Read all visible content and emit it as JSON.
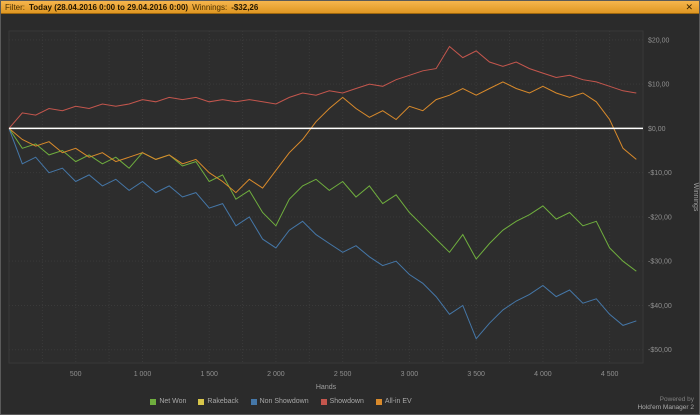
{
  "titlebar": {
    "filter_label": "Filter:",
    "filter_value": "Today (28.04.2016 0:00 to 29.04.2016 0:00)",
    "winnings_label": "Winnings:",
    "winnings_value": "-$32,26",
    "close_glyph": "✕"
  },
  "footer": {
    "powered_by": "Powered by",
    "brand": "Hold'em Manager 2"
  },
  "colors": {
    "background": "#2b2b2b",
    "plot_background": "#2d2d2d",
    "gridline": "#3a3a3a",
    "zero_line": "#ffffff",
    "titlebar_orange": "#e9a432",
    "axis_text": "#8f8f8f"
  },
  "chart_data": {
    "type": "line",
    "title": "",
    "xlabel": "Hands",
    "ylabel": "Winnings",
    "xlim": [
      0,
      4750
    ],
    "ylim": [
      -53,
      22
    ],
    "grid": "dotted",
    "legend_position": "bottom",
    "zero_line_color": "#ffffff",
    "x_step": 100,
    "x_ticks": [
      {
        "v": 500,
        "label": "500"
      },
      {
        "v": 1000,
        "label": "1 000"
      },
      {
        "v": 1500,
        "label": "1 500"
      },
      {
        "v": 2000,
        "label": "2 000"
      },
      {
        "v": 2500,
        "label": "2 500"
      },
      {
        "v": 3000,
        "label": "3 000"
      },
      {
        "v": 3500,
        "label": "3 500"
      },
      {
        "v": 4000,
        "label": "4 000"
      },
      {
        "v": 4500,
        "label": "4 500"
      }
    ],
    "y_ticks": [
      {
        "v": 20,
        "label": "$20,00"
      },
      {
        "v": 10,
        "label": "$10,00"
      },
      {
        "v": 0,
        "label": "$0,00"
      },
      {
        "v": -10,
        "label": "-$10,00"
      },
      {
        "v": -20,
        "label": "-$20,00"
      },
      {
        "v": -30,
        "label": "-$30,00"
      },
      {
        "v": -40,
        "label": "-$40,00"
      },
      {
        "v": -50,
        "label": "-$50,00"
      }
    ],
    "series": [
      {
        "name": "Net Won",
        "color": "#6fae3e",
        "values": [
          0,
          -4.5,
          -3.5,
          -6,
          -5,
          -7.5,
          -6,
          -8,
          -6.5,
          -9,
          -5.5,
          -7,
          -6,
          -8.5,
          -7.5,
          -12,
          -10.5,
          -16,
          -14,
          -19,
          -22,
          -16,
          -13,
          -11.5,
          -14,
          -12,
          -15.5,
          -13,
          -17,
          -15,
          -19,
          -22,
          -25,
          -28,
          -24,
          -29.5,
          -26,
          -23,
          -21,
          -19.5,
          -17.5,
          -20.5,
          -19,
          -22,
          -21,
          -27,
          -30,
          -32.26
        ]
      },
      {
        "name": "Rakeback",
        "color": "#d8c64a",
        "values": [
          0,
          0,
          0,
          0,
          0,
          0,
          0,
          0,
          0,
          0,
          0,
          0,
          0,
          0,
          0,
          0,
          0,
          0,
          0,
          0,
          0,
          0,
          0,
          0,
          0,
          0,
          0,
          0,
          0,
          0,
          0,
          0,
          0,
          0,
          0,
          0,
          0,
          0,
          0,
          0,
          0,
          0,
          0,
          0,
          0,
          0,
          0,
          0
        ]
      },
      {
        "name": "Non Showdown",
        "color": "#4577a8",
        "values": [
          0,
          -8,
          -6.5,
          -10,
          -9,
          -12,
          -10.5,
          -13,
          -11.5,
          -14,
          -12,
          -14.5,
          -13,
          -15.5,
          -14.5,
          -18,
          -17,
          -22,
          -20,
          -25,
          -27,
          -23,
          -21,
          -24,
          -26,
          -28,
          -26.5,
          -29,
          -31,
          -30,
          -33,
          -35,
          -38,
          -42,
          -40,
          -47.5,
          -44,
          -41,
          -39,
          -37.5,
          -35.5,
          -38,
          -36.5,
          -39.5,
          -38.5,
          -42,
          -44.5,
          -43.5
        ]
      },
      {
        "name": "Showdown",
        "color": "#c4564d",
        "values": [
          0,
          3.5,
          3,
          4.5,
          4,
          5,
          4.5,
          5.5,
          5,
          5.5,
          6.5,
          6,
          7,
          6.5,
          7,
          6,
          6.5,
          6,
          6.5,
          6,
          5.5,
          7,
          8,
          7.5,
          8.5,
          8,
          9,
          10,
          9.5,
          11,
          12,
          13,
          13.5,
          18.5,
          16,
          17.5,
          15,
          14,
          15,
          13.5,
          12.5,
          11.5,
          12,
          11,
          10.5,
          9.5,
          8.5,
          8
        ]
      },
      {
        "name": "All-in EV",
        "color": "#d98a2b",
        "values": [
          0,
          -2.5,
          -4,
          -3,
          -5.5,
          -4.5,
          -6.5,
          -5.5,
          -7.5,
          -6.5,
          -5.5,
          -7,
          -6,
          -8,
          -7,
          -10,
          -12,
          -14.5,
          -11.5,
          -13.5,
          -9.5,
          -5.5,
          -2.5,
          1.5,
          4.5,
          7,
          4.5,
          2.5,
          4,
          2,
          5,
          4,
          6.5,
          7.5,
          9,
          7.5,
          9,
          10.5,
          9,
          8,
          9.5,
          8,
          7,
          8,
          6,
          2,
          -4.5,
          -7
        ]
      }
    ]
  }
}
